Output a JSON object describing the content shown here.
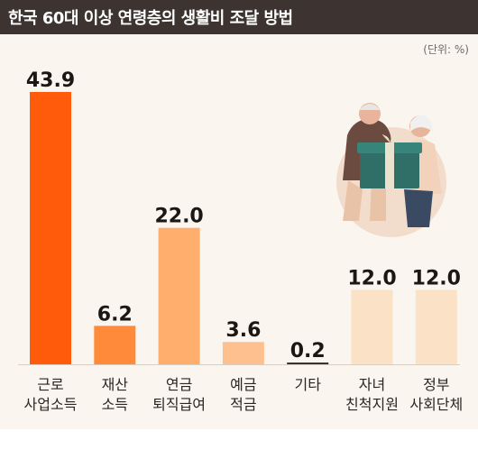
{
  "header": {
    "title": "한국 60대 이상 연령층의 생활비 조달 방법"
  },
  "unit_note": "(단위: %)",
  "colors": {
    "header_bg": "#3d3431",
    "background": "#faf6ef",
    "bars": [
      "#ff5b0a",
      "#ff8a3a",
      "#ffae6e",
      "#ffc090",
      "#fcd5b0",
      "#fbe1c5",
      "#fbe1c5"
    ]
  },
  "chart_data": {
    "type": "bar",
    "title": "한국 60대 이상 연령층의 생활비 조달 방법",
    "unit": "(단위: %)",
    "categories": [
      [
        "근로",
        "사업소득"
      ],
      [
        "재산",
        "소득"
      ],
      [
        "연금",
        "퇴직급여"
      ],
      [
        "예금",
        "적금"
      ],
      [
        "기타"
      ],
      [
        "자녀",
        "친척지원"
      ],
      [
        "정부",
        "사회단체"
      ]
    ],
    "values": [
      43.9,
      6.2,
      22.0,
      3.6,
      0.2,
      12.0,
      12.0
    ],
    "value_labels": [
      "43.9",
      "6.2",
      "22.0",
      "3.6",
      "0.2",
      "12.0",
      "12.0"
    ],
    "ylim": [
      0,
      43.9
    ],
    "grid": false,
    "legend": "none"
  },
  "illustration": {
    "name": "elderly-couple-gift-illustration"
  }
}
